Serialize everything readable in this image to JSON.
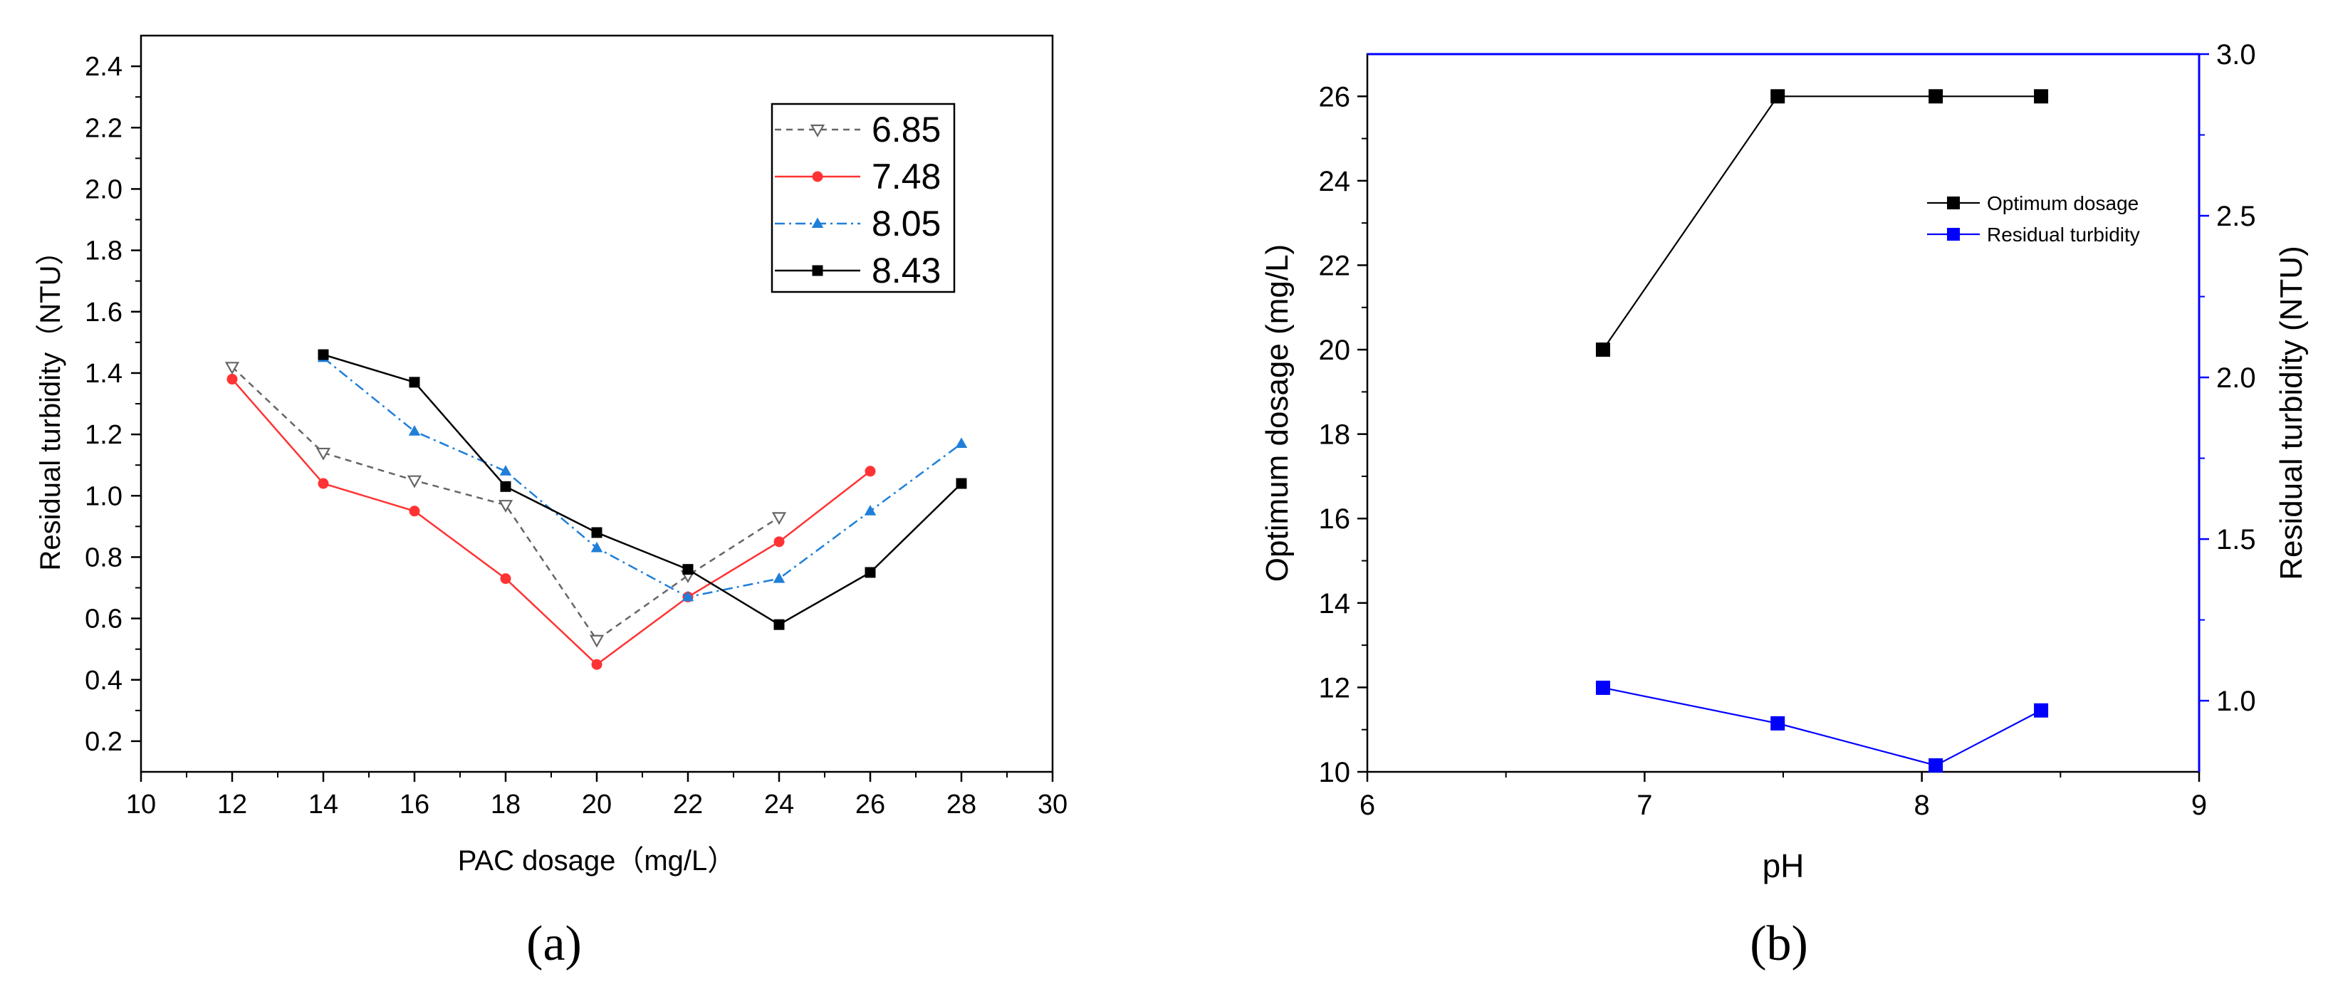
{
  "chart_data": [
    {
      "panel_label": "(a)",
      "type": "line",
      "title": "",
      "xlabel": "PAC dosage（mg/L）",
      "ylabel": "Residual turbidity（NTU）",
      "xlim": [
        10,
        30
      ],
      "ylim": [
        0.1,
        2.5
      ],
      "xticks": [
        10,
        12,
        14,
        16,
        18,
        20,
        22,
        24,
        26,
        28,
        30
      ],
      "yticks": [
        0.2,
        0.4,
        0.6,
        0.8,
        1.0,
        1.2,
        1.4,
        1.6,
        1.8,
        2.0,
        2.2,
        2.4
      ],
      "legend_position": "top-right",
      "series": [
        {
          "name": "6.85",
          "color": "#666666",
          "marker": "triangle-down-open",
          "line": "dash",
          "x": [
            12,
            14,
            16,
            18,
            20,
            22,
            24
          ],
          "values": [
            1.42,
            1.14,
            1.05,
            0.97,
            0.53,
            0.74,
            0.93
          ]
        },
        {
          "name": "7.48",
          "color": "#ff3333",
          "marker": "circle",
          "line": "solid",
          "x": [
            12,
            14,
            16,
            18,
            20,
            22,
            24,
            26
          ],
          "values": [
            1.38,
            1.04,
            0.95,
            0.73,
            0.45,
            0.67,
            0.85,
            1.08
          ]
        },
        {
          "name": "8.05",
          "color": "#1f7fd9",
          "marker": "triangle-up",
          "line": "dashdot",
          "x": [
            14,
            16,
            18,
            20,
            22,
            24,
            26,
            28
          ],
          "values": [
            1.45,
            1.21,
            1.08,
            0.83,
            0.67,
            0.73,
            0.95,
            1.17
          ]
        },
        {
          "name": "8.43",
          "color": "#000000",
          "marker": "square",
          "line": "solid",
          "x": [
            14,
            16,
            18,
            20,
            22,
            24,
            26,
            28
          ],
          "values": [
            1.46,
            1.37,
            1.03,
            0.88,
            0.76,
            0.58,
            0.75,
            1.04
          ]
        }
      ]
    },
    {
      "panel_label": "(b)",
      "type": "line",
      "title": "",
      "xlabel": "pH",
      "ylabel": "Optimum dosage (mg/L)",
      "ylabel_right": "Residual turbidity (NTU)",
      "xlim": [
        6,
        9
      ],
      "ylim": [
        10,
        27
      ],
      "ylim_right": [
        0.78,
        3.0
      ],
      "xticks": [
        6,
        7,
        8,
        9
      ],
      "yticks": [
        10,
        12,
        14,
        16,
        18,
        20,
        22,
        24,
        26
      ],
      "yticks_right": [
        "1.0",
        "1.5",
        "2.0",
        "2.5",
        "3.0"
      ],
      "right_axis_color": "#0000ff",
      "legend_position": "top-right",
      "series": [
        {
          "name": "Optimum dosage",
          "axis": "left",
          "color": "#000000",
          "marker": "square",
          "x": [
            6.85,
            7.48,
            8.05,
            8.43
          ],
          "values": [
            20,
            26,
            26,
            26
          ]
        },
        {
          "name": "Residual turbidity",
          "axis": "right",
          "color": "#0000ff",
          "marker": "square",
          "x": [
            6.85,
            7.48,
            8.05,
            8.43
          ],
          "values": [
            1.04,
            0.93,
            0.8,
            0.97
          ]
        }
      ]
    }
  ]
}
